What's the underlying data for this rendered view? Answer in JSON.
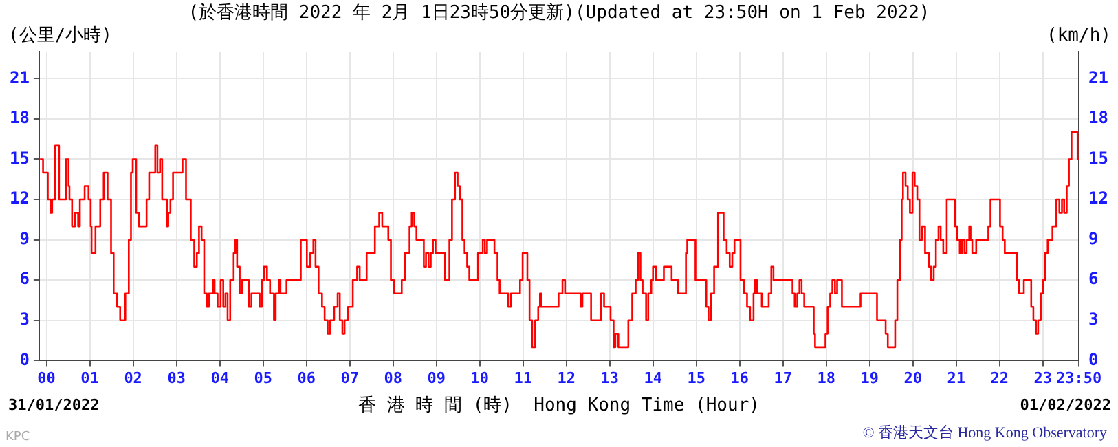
{
  "chart_data": {
    "type": "step",
    "title": "(於香港時間 2022 年 2月 1日23時50分更新)(Updated at 23:50H on 1 Feb 2022)",
    "xlabel": "香 港 時 間 (時)  Hong Kong Time (Hour)",
    "ylabel": "(公里/小時)",
    "y2label": "(km/h)",
    "annotations": [
      "31/01/2022",
      "01/02/2022",
      "© 香港天文台 Hong Kong Observatory",
      "KPC"
    ],
    "series": [
      {
        "color": "#ff0000",
        "x": [
          -0.15,
          -0.08,
          0.03,
          0.09,
          0.13,
          0.2,
          0.25,
          0.29,
          0.42,
          0.45,
          0.51,
          0.53,
          0.59,
          0.66,
          0.73,
          0.77,
          0.84,
          0.88,
          0.97,
          1.02,
          1.04,
          1.13,
          1.24,
          1.32,
          1.36,
          1.41,
          1.49,
          1.55,
          1.63,
          1.7,
          1.77,
          1.82,
          1.9,
          1.95,
          1.99,
          2.07,
          2.13,
          2.2,
          2.31,
          2.37,
          2.51,
          2.56,
          2.62,
          2.67,
          2.78,
          2.81,
          2.86,
          2.92,
          3.0,
          3.14,
          3.22,
          3.33,
          3.41,
          3.47,
          3.52,
          3.58,
          3.64,
          3.7,
          3.75,
          3.84,
          3.88,
          3.95,
          4.02,
          4.08,
          4.13,
          4.18,
          4.24,
          4.32,
          4.36,
          4.4,
          4.46,
          4.51,
          4.6,
          4.67,
          4.73,
          4.86,
          4.92,
          4.97,
          5.02,
          5.09,
          5.16,
          5.25,
          5.29,
          5.36,
          5.4,
          5.47,
          5.54,
          5.82,
          5.87,
          5.95,
          6.01,
          6.09,
          6.16,
          6.21,
          6.28,
          6.36,
          6.42,
          6.49,
          6.55,
          6.64,
          6.72,
          6.77,
          6.83,
          6.88,
          6.96,
          7.07,
          7.17,
          7.23,
          7.39,
          7.5,
          7.58,
          7.68,
          7.75,
          7.83,
          7.89,
          7.95,
          8.02,
          8.13,
          8.2,
          8.27,
          8.38,
          8.43,
          8.49,
          8.54,
          8.63,
          8.71,
          8.76,
          8.82,
          8.87,
          8.92,
          8.98,
          9.14,
          9.2,
          9.25,
          9.3,
          9.36,
          9.43,
          9.49,
          9.54,
          9.6,
          9.65,
          9.71,
          9.76,
          9.92,
          9.96,
          10.07,
          10.12,
          10.17,
          10.28,
          10.34,
          10.41,
          10.46,
          10.61,
          10.66,
          10.72,
          10.88,
          10.93,
          10.99,
          11.04,
          11.1,
          11.15,
          11.21,
          11.28,
          11.35,
          11.39,
          11.42,
          11.5,
          11.78,
          11.82,
          11.91,
          11.97,
          12.13,
          12.29,
          12.33,
          12.37,
          12.51,
          12.57,
          12.73,
          12.8,
          12.87,
          12.95,
          13.02,
          13.09,
          13.13,
          13.2,
          13.38,
          13.43,
          13.52,
          13.6,
          13.65,
          13.71,
          13.76,
          13.84,
          13.89,
          13.96,
          14.0,
          14.07,
          14.22,
          14.25,
          14.39,
          14.43,
          14.5,
          14.58,
          14.72,
          14.76,
          14.79,
          14.9,
          14.98,
          15.12,
          15.23,
          15.28,
          15.34,
          15.41,
          15.5,
          15.59,
          15.63,
          15.7,
          15.77,
          15.83,
          15.88,
          15.96,
          16.02,
          16.1,
          16.17,
          16.24,
          16.32,
          16.35,
          16.4,
          16.51,
          16.62,
          16.67,
          16.73,
          16.78,
          17.16,
          17.22,
          17.27,
          17.33,
          17.38,
          17.43,
          17.49,
          17.63,
          17.71,
          17.74,
          17.92,
          17.98,
          18.03,
          18.09,
          18.14,
          18.2,
          18.25,
          18.3,
          18.36,
          18.43,
          18.74,
          18.79,
          18.87,
          19.12,
          19.17,
          19.28,
          19.37,
          19.42,
          19.52,
          19.59,
          19.64,
          19.7,
          19.74,
          19.77,
          19.83,
          19.88,
          19.93,
          19.99,
          20.04,
          20.1,
          20.15,
          20.21,
          20.28,
          20.37,
          20.42,
          20.48,
          20.53,
          20.59,
          20.64,
          20.7,
          20.78,
          20.91,
          20.97,
          21.02,
          21.08,
          21.13,
          21.19,
          21.24,
          21.3,
          21.33,
          21.37,
          21.44,
          21.46,
          21.68,
          21.74,
          21.79,
          21.96,
          22.01,
          22.07,
          22.12,
          22.18,
          22.36,
          22.4,
          22.45,
          22.51,
          22.56,
          22.67,
          22.73,
          22.78,
          22.84,
          22.89,
          22.95,
          23.0,
          23.05,
          23.11,
          23.22,
          23.31,
          23.38,
          23.44,
          23.49,
          23.55,
          23.6,
          23.66,
          23.77,
          23.8,
          23.83
        ],
        "values": [
          15,
          14,
          12,
          11,
          12,
          16,
          16,
          12,
          12,
          15,
          13,
          12,
          10,
          11,
          10,
          12,
          12,
          13,
          12,
          10,
          8,
          10,
          12,
          14,
          14,
          12,
          8,
          5,
          4,
          3,
          3,
          5,
          9,
          14,
          15,
          11,
          10,
          10,
          12,
          14,
          16,
          14,
          15,
          12,
          10,
          11,
          12,
          14,
          14,
          15,
          12,
          9,
          7,
          8,
          10,
          9,
          5,
          4,
          5,
          6,
          5,
          4,
          6,
          4,
          5,
          3,
          6,
          8,
          9,
          7,
          5,
          6,
          6,
          4,
          5,
          5,
          4,
          6,
          7,
          6,
          5,
          3,
          5,
          6,
          5,
          5,
          6,
          6,
          9,
          9,
          7,
          8,
          9,
          7,
          5,
          4,
          3,
          2,
          3,
          4,
          5,
          3,
          2,
          3,
          4,
          6,
          7,
          6,
          8,
          8,
          10,
          11,
          10,
          10,
          9,
          6,
          5,
          5,
          6,
          8,
          10,
          11,
          10,
          9,
          9,
          7,
          8,
          7,
          8,
          9,
          8,
          8,
          6,
          6,
          9,
          12,
          14,
          13,
          12,
          9,
          8,
          7,
          6,
          6,
          8,
          9,
          8,
          9,
          9,
          8,
          6,
          5,
          5,
          4,
          5,
          5,
          6,
          8,
          8,
          6,
          3,
          1,
          3,
          4,
          5,
          4,
          4,
          4,
          5,
          6,
          5,
          5,
          5,
          4,
          5,
          5,
          3,
          3,
          5,
          4,
          4,
          3,
          1,
          2,
          1,
          1,
          3,
          5,
          6,
          8,
          6,
          5,
          3,
          5,
          6,
          7,
          6,
          6,
          7,
          7,
          6,
          6,
          5,
          5,
          8,
          9,
          9,
          6,
          6,
          4,
          3,
          5,
          7,
          11,
          11,
          9,
          8,
          7,
          8,
          9,
          9,
          6,
          5,
          4,
          3,
          5,
          6,
          5,
          4,
          4,
          5,
          7,
          6,
          6,
          5,
          4,
          5,
          6,
          5,
          4,
          4,
          2,
          1,
          1,
          2,
          4,
          5,
          6,
          5,
          6,
          6,
          4,
          4,
          4,
          5,
          5,
          5,
          3,
          3,
          2,
          1,
          1,
          3,
          6,
          9,
          12,
          14,
          13,
          12,
          11,
          14,
          13,
          12,
          9,
          10,
          8,
          7,
          6,
          7,
          9,
          10,
          9,
          8,
          12,
          12,
          10,
          9,
          8,
          9,
          8,
          9,
          10,
          9,
          8,
          8,
          9,
          9,
          10,
          12,
          12,
          10,
          9,
          8,
          8,
          8,
          6,
          5,
          5,
          6,
          6,
          4,
          3,
          2,
          3,
          5,
          6,
          8,
          9,
          10,
          12,
          11,
          12,
          11,
          13,
          15,
          17,
          17,
          15,
          15
        ]
      }
    ],
    "xlim": [
      -0.17,
      23.83
    ],
    "xticks": [
      {
        "value": 0,
        "label": "00"
      },
      {
        "value": 1,
        "label": "01"
      },
      {
        "value": 2,
        "label": "02"
      },
      {
        "value": 3,
        "label": "03"
      },
      {
        "value": 4,
        "label": "04"
      },
      {
        "value": 5,
        "label": "05"
      },
      {
        "value": 6,
        "label": "06"
      },
      {
        "value": 7,
        "label": "07"
      },
      {
        "value": 8,
        "label": "08"
      },
      {
        "value": 9,
        "label": "09"
      },
      {
        "value": 10,
        "label": "10"
      },
      {
        "value": 11,
        "label": "11"
      },
      {
        "value": 12,
        "label": "12"
      },
      {
        "value": 13,
        "label": "13"
      },
      {
        "value": 14,
        "label": "14"
      },
      {
        "value": 15,
        "label": "15"
      },
      {
        "value": 16,
        "label": "16"
      },
      {
        "value": 17,
        "label": "17"
      },
      {
        "value": 18,
        "label": "18"
      },
      {
        "value": 19,
        "label": "19"
      },
      {
        "value": 20,
        "label": "20"
      },
      {
        "value": 21,
        "label": "21"
      },
      {
        "value": 22,
        "label": "22"
      },
      {
        "value": 23,
        "label": "23"
      },
      {
        "value": 23.83,
        "label": "23:50"
      }
    ],
    "ylim": [
      0,
      23
    ],
    "yticks": [
      0,
      3,
      6,
      9,
      12,
      15,
      18,
      21
    ],
    "y2lim": [
      0,
      23
    ],
    "y2ticks": [
      0,
      3,
      6,
      9,
      12,
      15,
      18,
      21
    ],
    "grid": true,
    "legend": false
  }
}
